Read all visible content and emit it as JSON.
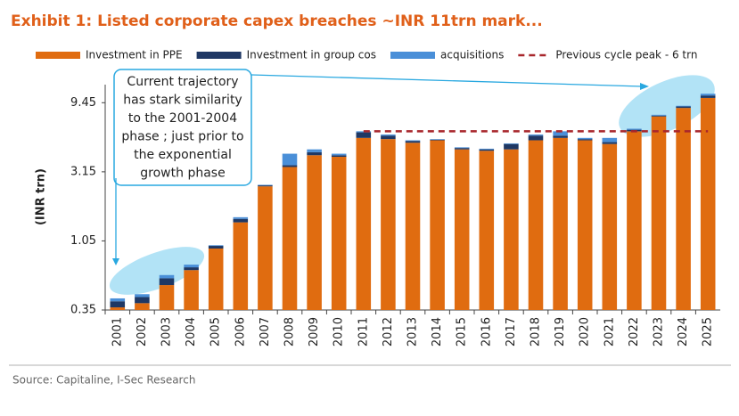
{
  "chart_data": {
    "type": "bar",
    "stacked": true,
    "title": "Exhibit 1: Listed corporate capex breaches ~INR 11trn mark...",
    "y_label": "(INR trn)",
    "source": "Source: Capitaline, I-Sec Research",
    "annotation": [
      "Current trajectory",
      "has stark similarity",
      "to the 2001-2004",
      "phase ; just prior to",
      "the exponential",
      "growth phase"
    ],
    "log_scale": true,
    "ylim": [
      0.35,
      12.6
    ],
    "yticks": [
      0.35,
      1.05,
      3.15,
      9.45
    ],
    "categories": [
      "2001",
      "2002",
      "2003",
      "2004",
      "2005",
      "2006",
      "2007",
      "2008",
      "2009",
      "2010",
      "2011",
      "2012",
      "2013",
      "2014",
      "2015",
      "2016",
      "2017",
      "2018",
      "2019",
      "2020",
      "2021",
      "2022",
      "2023",
      "2024",
      "2025"
    ],
    "series": [
      {
        "name": "Investment in PPE",
        "color": "#e06c10",
        "values": [
          0.365,
          0.39,
          0.52,
          0.66,
          0.93,
          1.41,
          2.5,
          3.4,
          4.1,
          4.0,
          5.4,
          5.3,
          5.0,
          5.2,
          4.5,
          4.4,
          4.5,
          5.2,
          5.4,
          5.2,
          4.9,
          6.0,
          7.6,
          8.7,
          10.2
        ]
      },
      {
        "name": "Investment in group cos",
        "color": "#1f3864",
        "values": [
          0.037,
          0.04,
          0.06,
          0.03,
          0.04,
          0.08,
          0.04,
          0.1,
          0.2,
          0.1,
          0.5,
          0.3,
          0.15,
          0.05,
          0.1,
          0.1,
          0.4,
          0.4,
          0.2,
          0.1,
          0.15,
          0.15,
          0.1,
          0.2,
          0.4
        ]
      },
      {
        "name": "acquisitions",
        "color": "#4a8fd8",
        "values": [
          0.019,
          0.02,
          0.03,
          0.03,
          0.01,
          0.04,
          0.02,
          0.7,
          0.2,
          0.1,
          0.1,
          0.1,
          0.05,
          0.05,
          0.05,
          0.05,
          0.05,
          0.1,
          0.4,
          0.1,
          0.35,
          0.1,
          0.1,
          0.1,
          0.3
        ]
      },
      {
        "name": "Previous cycle peak - 6 trn",
        "type": "line",
        "dashed": true,
        "color": "#a8262b",
        "values": [
          null,
          null,
          null,
          null,
          null,
          null,
          null,
          null,
          null,
          null,
          6,
          6,
          6,
          6,
          6,
          6,
          6,
          6,
          6,
          6,
          6,
          6,
          6,
          6,
          6
        ]
      }
    ]
  }
}
